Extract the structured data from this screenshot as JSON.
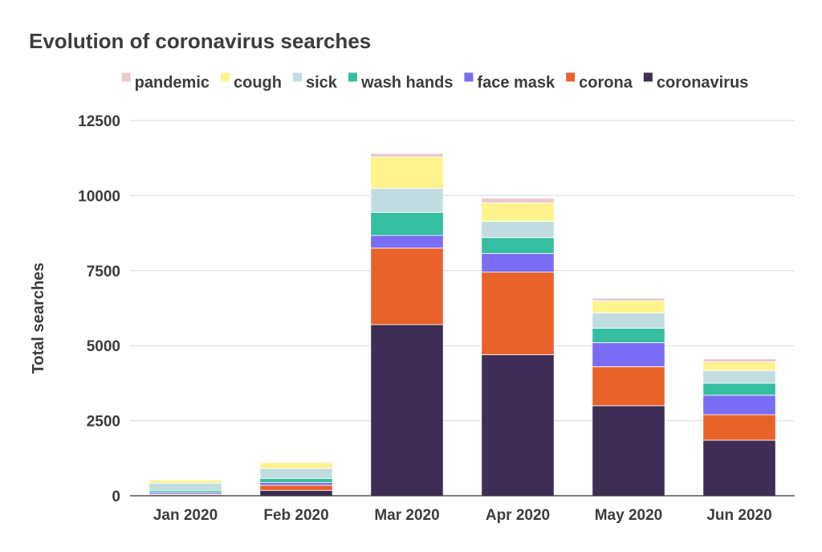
{
  "chart_data": {
    "type": "bar",
    "stacked": true,
    "title": "Evolution of coronavirus searches",
    "xlabel": "",
    "ylabel": "Total searches",
    "ylim": [
      0,
      12500
    ],
    "yticks": [
      0,
      2500,
      5000,
      7500,
      10000,
      12500
    ],
    "grid": true,
    "legend_position": "top",
    "categories": [
      "Jan 2020",
      "Feb 2020",
      "Mar 2020",
      "Apr 2020",
      "May 2020",
      "Jun 2020"
    ],
    "series": [
      {
        "name": "coronavirus",
        "color": "#3e2d54",
        "values": [
          30,
          180,
          5700,
          4700,
          3000,
          1850
        ]
      },
      {
        "name": "corona",
        "color": "#e8622a",
        "values": [
          30,
          170,
          2550,
          2750,
          1300,
          850
        ]
      },
      {
        "name": "face mask",
        "color": "#7b6cf4",
        "values": [
          60,
          90,
          420,
          620,
          800,
          650
        ]
      },
      {
        "name": "wash hands",
        "color": "#35bea0",
        "values": [
          60,
          140,
          770,
          530,
          480,
          400
        ]
      },
      {
        "name": "sick",
        "color": "#c2dde1",
        "values": [
          240,
          330,
          800,
          540,
          510,
          420
        ]
      },
      {
        "name": "cough",
        "color": "#fef38c",
        "values": [
          100,
          190,
          1050,
          620,
          400,
          290
        ]
      },
      {
        "name": "pandemic",
        "color": "#e8c8cc",
        "values": [
          20,
          30,
          110,
          150,
          90,
          100
        ]
      }
    ],
    "legend_order": [
      "pandemic",
      "cough",
      "sick",
      "wash hands",
      "face mask",
      "corona",
      "coronavirus"
    ]
  }
}
